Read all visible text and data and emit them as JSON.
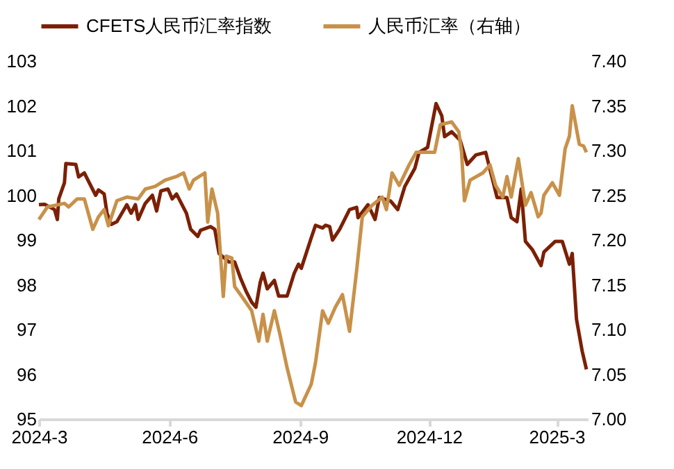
{
  "chart_data": {
    "type": "line",
    "legend": "top",
    "grid": false,
    "marker": "none",
    "line_style": "solid",
    "xlim": [
      "2024-03-01",
      "2025-03-23"
    ],
    "xticks": [
      {
        "value": "2024-03-01",
        "label": "2024-3"
      },
      {
        "value": "2024-06-01",
        "label": "2024-6"
      },
      {
        "value": "2024-09-01",
        "label": "2024-9"
      },
      {
        "value": "2024-12-01",
        "label": "2024-12"
      },
      {
        "value": "2025-03-01",
        "label": "2025-3"
      }
    ],
    "ylim": [
      95,
      103
    ],
    "yticks": [
      95,
      96,
      97,
      98,
      99,
      100,
      101,
      102,
      103
    ],
    "y2lim": [
      7.0,
      7.4
    ],
    "y2ticks": [
      {
        "value": 7.0,
        "label": "7.00"
      },
      {
        "value": 7.05,
        "label": "7.05"
      },
      {
        "value": 7.1,
        "label": "7.10"
      },
      {
        "value": 7.15,
        "label": "7.15"
      },
      {
        "value": 7.2,
        "label": "7.20"
      },
      {
        "value": 7.25,
        "label": "7.25"
      },
      {
        "value": 7.3,
        "label": "7.30"
      },
      {
        "value": 7.35,
        "label": "7.35"
      },
      {
        "value": 7.4,
        "label": "7.40"
      }
    ],
    "series": [
      {
        "name": "CFETS人民币汇率指数",
        "color": "#7b2005",
        "x": [
          "2024-03-01",
          "2024-03-05",
          "2024-03-12",
          "2024-03-14",
          "2024-03-15",
          "2024-03-19",
          "2024-03-20",
          "2024-03-27",
          "2024-03-29",
          "2024-04-02",
          "2024-04-10",
          "2024-04-12",
          "2024-04-16",
          "2024-04-18",
          "2024-04-21",
          "2024-04-25",
          "2024-05-02",
          "2024-05-05",
          "2024-05-08",
          "2024-05-10",
          "2024-05-15",
          "2024-05-20",
          "2024-05-23",
          "2024-05-26",
          "2024-05-31",
          "2024-06-03",
          "2024-06-06",
          "2024-06-13",
          "2024-06-16",
          "2024-06-21",
          "2024-06-23",
          "2024-06-30",
          "2024-07-03",
          "2024-07-06",
          "2024-07-13",
          "2024-07-17",
          "2024-07-21",
          "2024-07-25",
          "2024-07-29",
          "2024-08-01",
          "2024-08-04",
          "2024-08-06",
          "2024-08-09",
          "2024-08-14",
          "2024-08-17",
          "2024-08-23",
          "2024-08-28",
          "2024-08-31",
          "2024-09-02",
          "2024-09-09",
          "2024-09-12",
          "2024-09-17",
          "2024-09-19",
          "2024-09-22",
          "2024-09-24",
          "2024-09-29",
          "2024-10-06",
          "2024-10-11",
          "2024-10-12",
          "2024-10-19",
          "2024-10-24",
          "2024-10-27",
          "2024-11-04",
          "2024-11-09",
          "2024-11-14",
          "2024-11-21",
          "2024-11-24",
          "2024-11-30",
          "2024-12-06",
          "2024-12-10",
          "2024-12-12",
          "2024-12-17",
          "2024-12-23",
          "2024-12-28",
          "2025-01-03",
          "2025-01-10",
          "2025-01-15",
          "2025-01-18",
          "2025-01-25",
          "2025-01-28",
          "2025-02-01",
          "2025-02-04",
          "2025-02-07",
          "2025-02-12",
          "2025-02-18",
          "2025-02-20",
          "2025-02-28",
          "2025-03-05",
          "2025-03-10",
          "2025-03-12",
          "2025-03-15",
          "2025-03-19",
          "2025-03-22"
        ],
        "values": [
          99.79,
          99.8,
          99.68,
          99.46,
          99.92,
          100.28,
          100.71,
          100.69,
          100.41,
          100.5,
          100.0,
          100.12,
          100.03,
          99.6,
          99.35,
          99.41,
          99.79,
          99.6,
          99.79,
          99.46,
          99.82,
          100.0,
          99.65,
          100.1,
          100.14,
          99.92,
          100.03,
          99.6,
          99.24,
          99.08,
          99.22,
          99.3,
          99.24,
          98.7,
          98.51,
          98.51,
          98.16,
          97.86,
          97.61,
          97.5,
          98.05,
          98.26,
          97.91,
          98.1,
          97.75,
          97.75,
          98.26,
          98.46,
          98.37,
          99.05,
          99.33,
          99.27,
          99.33,
          99.3,
          99.0,
          99.24,
          99.68,
          99.73,
          99.5,
          99.79,
          99.46,
          99.95,
          99.87,
          99.68,
          100.2,
          100.6,
          100.96,
          101.07,
          102.05,
          101.78,
          101.31,
          101.42,
          101.23,
          100.69,
          100.9,
          100.96,
          100.33,
          99.95,
          99.95,
          99.5,
          99.41,
          100.14,
          98.97,
          98.78,
          98.43,
          98.73,
          98.97,
          98.97,
          98.46,
          98.7,
          97.23,
          96.52,
          96.11
        ]
      },
      {
        "name": "人民币汇率（右轴）",
        "color": "#c8914a",
        "axis": "y2",
        "x": [
          "2024-03-01",
          "2024-03-07",
          "2024-03-19",
          "2024-03-22",
          "2024-03-28",
          "2024-04-02",
          "2024-04-08",
          "2024-04-12",
          "2024-04-16",
          "2024-04-19",
          "2024-04-25",
          "2024-05-02",
          "2024-05-10",
          "2024-05-15",
          "2024-05-22",
          "2024-05-29",
          "2024-06-06",
          "2024-06-11",
          "2024-06-15",
          "2024-06-18",
          "2024-06-26",
          "2024-06-28",
          "2024-07-01",
          "2024-07-05",
          "2024-07-09",
          "2024-07-11",
          "2024-07-15",
          "2024-07-17",
          "2024-07-22",
          "2024-07-29",
          "2024-08-03",
          "2024-08-06",
          "2024-08-09",
          "2024-08-14",
          "2024-08-18",
          "2024-08-23",
          "2024-08-29",
          "2024-09-02",
          "2024-09-09",
          "2024-09-12",
          "2024-09-17",
          "2024-09-21",
          "2024-09-26",
          "2024-10-01",
          "2024-10-06",
          "2024-10-11",
          "2024-10-15",
          "2024-10-22",
          "2024-10-29",
          "2024-11-01",
          "2024-11-05",
          "2024-11-10",
          "2024-11-17",
          "2024-11-22",
          "2024-11-27",
          "2024-12-05",
          "2024-12-09",
          "2024-12-17",
          "2024-12-22",
          "2024-12-24",
          "2024-12-26",
          "2024-12-30",
          "2025-01-08",
          "2025-01-13",
          "2025-01-17",
          "2025-01-22",
          "2025-01-25",
          "2025-01-28",
          "2025-02-02",
          "2025-02-07",
          "2025-02-11",
          "2025-02-16",
          "2025-02-18",
          "2025-02-20",
          "2025-02-26",
          "2025-03-03",
          "2025-03-07",
          "2025-03-10",
          "2025-03-12",
          "2025-03-17",
          "2025-03-20",
          "2025-03-22"
        ],
        "values": [
          7.223,
          7.237,
          7.241,
          7.237,
          7.246,
          7.246,
          7.212,
          7.226,
          7.234,
          7.216,
          7.244,
          7.248,
          7.246,
          7.257,
          7.26,
          7.267,
          7.271,
          7.275,
          7.257,
          7.267,
          7.275,
          7.22,
          7.257,
          7.23,
          7.137,
          7.182,
          7.18,
          7.148,
          7.137,
          7.121,
          7.087,
          7.117,
          7.087,
          7.121,
          7.094,
          7.057,
          7.019,
          7.015,
          7.039,
          7.063,
          7.121,
          7.107,
          7.125,
          7.139,
          7.098,
          7.166,
          7.226,
          7.239,
          7.248,
          7.234,
          7.275,
          7.261,
          7.284,
          7.298,
          7.298,
          7.298,
          7.329,
          7.332,
          7.321,
          7.298,
          7.244,
          7.267,
          7.275,
          7.284,
          7.261,
          7.248,
          7.271,
          7.248,
          7.291,
          7.239,
          7.253,
          7.226,
          7.23,
          7.25,
          7.264,
          7.25,
          7.302,
          7.316,
          7.35,
          7.307,
          7.305,
          7.298
        ]
      }
    ]
  }
}
